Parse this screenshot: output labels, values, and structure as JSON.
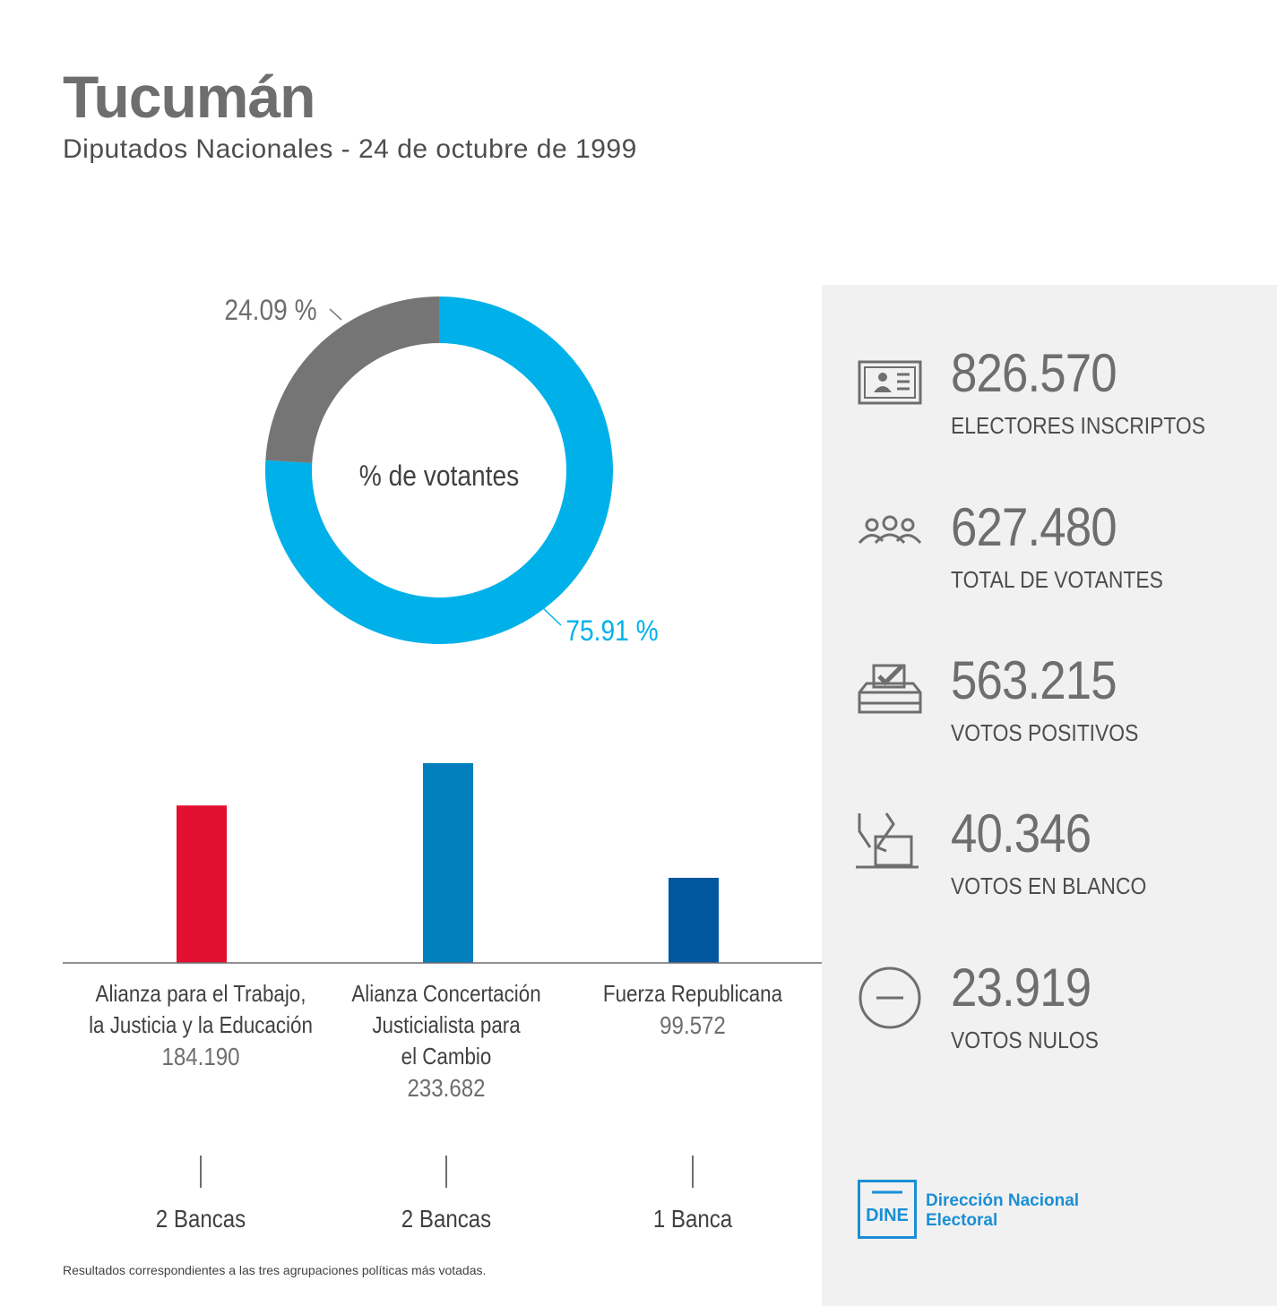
{
  "header": {
    "title": "Tucumán",
    "subtitle": "Diputados Nacionales - 24 de octubre de 1999"
  },
  "chart_data": [
    {
      "type": "pie",
      "title": "% de votantes",
      "slices": [
        {
          "label": "75.91 %",
          "value": 75.91,
          "color": "#00b1e9"
        },
        {
          "label": "24.09 %",
          "value": 24.09,
          "color": "#767575"
        }
      ]
    },
    {
      "type": "bar",
      "categories": [
        "Alianza para el Trabajo, la Justicia y la Educación",
        "Alianza Concertación Justicialista para el Cambio",
        "Fuerza Republicana"
      ],
      "values": [
        184190,
        233682,
        99572
      ],
      "value_labels": [
        "184.190",
        "233.682",
        "99.572"
      ],
      "colors": [
        "#e30f31",
        "#007fbc",
        "#00579f"
      ],
      "ylim": [
        0,
        233682
      ]
    }
  ],
  "parties": [
    {
      "name_lines": [
        "Alianza para el Trabajo,",
        "la Justicia y la Educación"
      ],
      "votes": "184.190",
      "seats": "2 Bancas"
    },
    {
      "name_lines": [
        "Alianza Concertación",
        "Justicialista para",
        "el Cambio"
      ],
      "votes": "233.682",
      "seats": "2 Bancas"
    },
    {
      "name_lines": [
        "Fuerza Republicana"
      ],
      "votes": "99.572",
      "seats": "1 Banca"
    }
  ],
  "stats": [
    {
      "icon": "id-card-icon",
      "value": "826.570",
      "label": "ELECTORES INSCRIPTOS"
    },
    {
      "icon": "people-icon",
      "value": "627.480",
      "label": "TOTAL DE VOTANTES"
    },
    {
      "icon": "ballot-box-check-icon",
      "value": "563.215",
      "label": "VOTOS POSITIVOS"
    },
    {
      "icon": "ballot-blank-icon",
      "value": "40.346",
      "label": "VOTOS EN BLANCO"
    },
    {
      "icon": "minus-circle-icon",
      "value": "23.919",
      "label": "VOTOS NULOS"
    }
  ],
  "footnote": "Resultados correspondientes a las tres agrupaciones políticas más votadas.",
  "logo": {
    "mark": "DINE",
    "line1": "Dirección Nacional",
    "line2": "Electoral",
    "color": "#1a8fd6"
  }
}
